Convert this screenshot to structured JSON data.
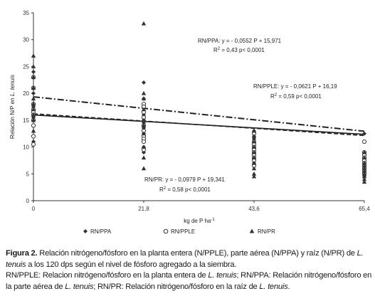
{
  "chart_data": {
    "type": "scatter",
    "title": "",
    "xlabel": "kg de P ha",
    "xlabel_sup": "-1",
    "ylabel": "Relación N/P en",
    "ylabel_species": "L. tenuis",
    "x_ticks": [
      "0",
      "21,8",
      "43,6",
      "65,4"
    ],
    "x_tick_values": [
      0,
      21.8,
      43.6,
      65.4
    ],
    "xlim": [
      0,
      65.4
    ],
    "ylim": [
      0,
      35
    ],
    "y_ticks": [
      0,
      5,
      10,
      15,
      20,
      25,
      30,
      35
    ],
    "grid": false,
    "legend_position": "bottom",
    "series": [
      {
        "name": "RN/PPA",
        "marker": "diamond",
        "line_style": "solid",
        "regression": {
          "slope": -0.0552,
          "intercept": 15.971
        },
        "equation": "RN/PPA: y = - 0,0552 P + 15,971",
        "r2_label": "R",
        "r2_value": " = 0,43  p< 0,0001",
        "points": [
          [
            0,
            24
          ],
          [
            0,
            20
          ],
          [
            0,
            18
          ],
          [
            0,
            17.5
          ],
          [
            0,
            17
          ],
          [
            0,
            16.5
          ],
          [
            0,
            16
          ],
          [
            0,
            15.5
          ],
          [
            0,
            14
          ],
          [
            0,
            11
          ],
          [
            21.8,
            22
          ],
          [
            21.8,
            19
          ],
          [
            21.8,
            16
          ],
          [
            21.8,
            15
          ],
          [
            21.8,
            14.5
          ],
          [
            21.8,
            13.5
          ],
          [
            21.8,
            12.5
          ],
          [
            21.8,
            11
          ],
          [
            21.8,
            10
          ],
          [
            21.8,
            9
          ],
          [
            43.6,
            13
          ],
          [
            43.6,
            12
          ],
          [
            43.6,
            11.5
          ],
          [
            43.6,
            10.5
          ],
          [
            43.6,
            10
          ],
          [
            43.6,
            9.5
          ],
          [
            43.6,
            9
          ],
          [
            43.6,
            8.5
          ],
          [
            43.6,
            8
          ],
          [
            43.6,
            7
          ],
          [
            65.4,
            12.5
          ],
          [
            65.4,
            9
          ],
          [
            65.4,
            8
          ],
          [
            65.4,
            7.5
          ],
          [
            65.4,
            7
          ],
          [
            65.4,
            6.5
          ],
          [
            65.4,
            6
          ],
          [
            65.4,
            5.5
          ],
          [
            65.4,
            5
          ],
          [
            65.4,
            4.5
          ]
        ]
      },
      {
        "name": "RN/PPLE",
        "marker": "circle",
        "line_style": "dashed",
        "regression": {
          "slope": -0.0621,
          "intercept": 16.19
        },
        "equation": "RN/PPLE: y = - 0,0621 P + 16,19",
        "r2_label": "R",
        "r2_value": " = 0,59  p< 0,0001",
        "points": [
          [
            0,
            23
          ],
          [
            0,
            21
          ],
          [
            0,
            18
          ],
          [
            0,
            17
          ],
          [
            0,
            16.5
          ],
          [
            0,
            16
          ],
          [
            0,
            15
          ],
          [
            0,
            14
          ],
          [
            0,
            12
          ],
          [
            0,
            10.5
          ],
          [
            21.8,
            18
          ],
          [
            21.8,
            17.5
          ],
          [
            21.8,
            16.5
          ],
          [
            21.8,
            15.5
          ],
          [
            21.8,
            14
          ],
          [
            21.8,
            13
          ],
          [
            21.8,
            12
          ],
          [
            21.8,
            11.5
          ],
          [
            21.8,
            11
          ],
          [
            21.8,
            9.5
          ],
          [
            43.6,
            12.5
          ],
          [
            43.6,
            11
          ],
          [
            43.6,
            10.5
          ],
          [
            43.6,
            10
          ],
          [
            43.6,
            9.5
          ],
          [
            43.6,
            9
          ],
          [
            43.6,
            8.5
          ],
          [
            43.6,
            8
          ],
          [
            43.6,
            7.5
          ],
          [
            43.6,
            6.5
          ],
          [
            65.4,
            11
          ],
          [
            65.4,
            9
          ],
          [
            65.4,
            8.5
          ],
          [
            65.4,
            8
          ],
          [
            65.4,
            7.5
          ],
          [
            65.4,
            7
          ],
          [
            65.4,
            6.5
          ],
          [
            65.4,
            6
          ],
          [
            65.4,
            5.5
          ],
          [
            65.4,
            5
          ]
        ]
      },
      {
        "name": "RN/PR",
        "marker": "triangle",
        "line_style": "dashdot",
        "regression": {
          "slope": -0.0979,
          "intercept": 19.341
        },
        "equation": "RN/PR: y = - 0,0979 P + 19,341",
        "r2_label": "R",
        "r2_value": " = 0,58  p< 0,0001",
        "points": [
          [
            0,
            27
          ],
          [
            0,
            25
          ],
          [
            0,
            23
          ],
          [
            0,
            21
          ],
          [
            0,
            19
          ],
          [
            0,
            18
          ],
          [
            0,
            17
          ],
          [
            0,
            16
          ],
          [
            0,
            15
          ],
          [
            0,
            13
          ],
          [
            21.8,
            33
          ],
          [
            21.8,
            20
          ],
          [
            21.8,
            19
          ],
          [
            21.8,
            17
          ],
          [
            21.8,
            15
          ],
          [
            21.8,
            14
          ],
          [
            21.8,
            12.5
          ],
          [
            21.8,
            10
          ],
          [
            21.8,
            8
          ],
          [
            21.8,
            6
          ],
          [
            43.6,
            13
          ],
          [
            43.6,
            12
          ],
          [
            43.6,
            11
          ],
          [
            43.6,
            10
          ],
          [
            43.6,
            9
          ],
          [
            43.6,
            8
          ],
          [
            43.6,
            7
          ],
          [
            43.6,
            6
          ],
          [
            43.6,
            5
          ],
          [
            43.6,
            4.5
          ],
          [
            65.4,
            9
          ],
          [
            65.4,
            8
          ],
          [
            65.4,
            7
          ],
          [
            65.4,
            6.5
          ],
          [
            65.4,
            6
          ],
          [
            65.4,
            5.5
          ],
          [
            65.4,
            5
          ],
          [
            65.4,
            4.5
          ],
          [
            65.4,
            4
          ],
          [
            65.4,
            3.5
          ]
        ]
      }
    ]
  },
  "caption": {
    "fig_label": "Figura 2.",
    "line1_part1": " Relación nitrógeno/fósforo en la planta entera (N/PPLE), parte aérea (N/PPA) y raíz (N/PR) de ",
    "species": "L. tenuis",
    "line1_part2": " a los 120 dps según el nivel de fósforo agregado a la siembra.",
    "line2_part1": "RN/PPLE: Relacion nitrógeno/fósforo en la planta entera de ",
    "line2_part2": "; RN/PPA: Relación nitrógeno/fósforo en la parte aérea de ",
    "line2_part3": "; RN/PR: Relación nitrógeno/fósforo en la raíz de ",
    "line2_end": "."
  }
}
